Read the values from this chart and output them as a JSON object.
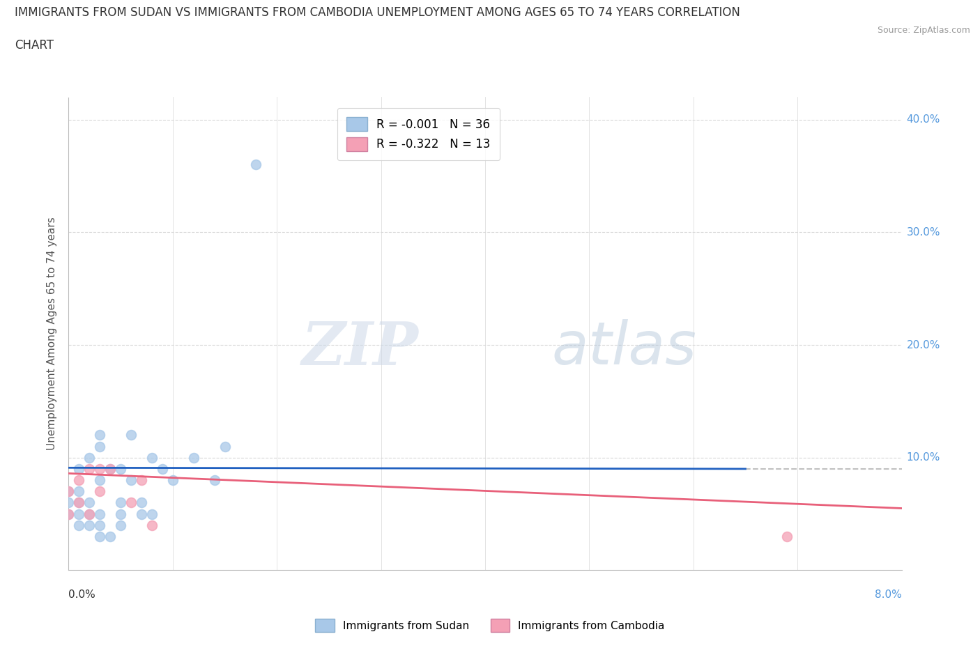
{
  "title_line1": "IMMIGRANTS FROM SUDAN VS IMMIGRANTS FROM CAMBODIA UNEMPLOYMENT AMONG AGES 65 TO 74 YEARS CORRELATION",
  "title_line2": "CHART",
  "source": "Source: ZipAtlas.com",
  "ylabel": "Unemployment Among Ages 65 to 74 years",
  "xlim": [
    0.0,
    0.08
  ],
  "ylim": [
    0.0,
    0.42
  ],
  "yticks": [
    0.0,
    0.1,
    0.2,
    0.3,
    0.4
  ],
  "ytick_labels": [
    "",
    "10.0%",
    "20.0%",
    "30.0%",
    "40.0%"
  ],
  "legend_sudan": "R = -0.001   N = 36",
  "legend_cambodia": "R = -0.322   N = 13",
  "sudan_color": "#a8c8e8",
  "cambodia_color": "#f4a0b5",
  "sudan_line_color": "#2060c0",
  "cambodia_line_color": "#e8607a",
  "trend_line_gray": "#c0c0c0",
  "sudan_x": [
    0.0,
    0.0,
    0.0,
    0.001,
    0.001,
    0.001,
    0.001,
    0.001,
    0.002,
    0.002,
    0.002,
    0.002,
    0.003,
    0.003,
    0.003,
    0.003,
    0.003,
    0.003,
    0.004,
    0.004,
    0.005,
    0.005,
    0.005,
    0.005,
    0.006,
    0.006,
    0.007,
    0.007,
    0.008,
    0.008,
    0.009,
    0.01,
    0.012,
    0.014,
    0.015,
    0.018
  ],
  "sudan_y": [
    0.05,
    0.06,
    0.07,
    0.04,
    0.05,
    0.06,
    0.07,
    0.09,
    0.04,
    0.05,
    0.06,
    0.1,
    0.03,
    0.04,
    0.05,
    0.08,
    0.11,
    0.12,
    0.03,
    0.09,
    0.04,
    0.05,
    0.06,
    0.09,
    0.08,
    0.12,
    0.05,
    0.06,
    0.05,
    0.1,
    0.09,
    0.08,
    0.1,
    0.08,
    0.11,
    0.36
  ],
  "cambodia_x": [
    0.0,
    0.0,
    0.001,
    0.001,
    0.002,
    0.002,
    0.003,
    0.003,
    0.004,
    0.006,
    0.007,
    0.008,
    0.069
  ],
  "cambodia_y": [
    0.05,
    0.07,
    0.06,
    0.08,
    0.05,
    0.09,
    0.07,
    0.09,
    0.09,
    0.06,
    0.08,
    0.04,
    0.03
  ],
  "sudan_trend_x": [
    0.0,
    0.065
  ],
  "sudan_trend_y": [
    0.091,
    0.09
  ],
  "cambodia_trend_x": [
    0.0,
    0.08
  ],
  "cambodia_trend_y": [
    0.086,
    0.055
  ],
  "gray_trend_x": [
    0.065,
    0.08
  ],
  "gray_trend_y": [
    0.09,
    0.09
  ],
  "watermark_zip": "ZIP",
  "watermark_atlas": "atlas",
  "background_color": "#ffffff",
  "grid_color": "#d8d8d8",
  "xtick_count": 9
}
